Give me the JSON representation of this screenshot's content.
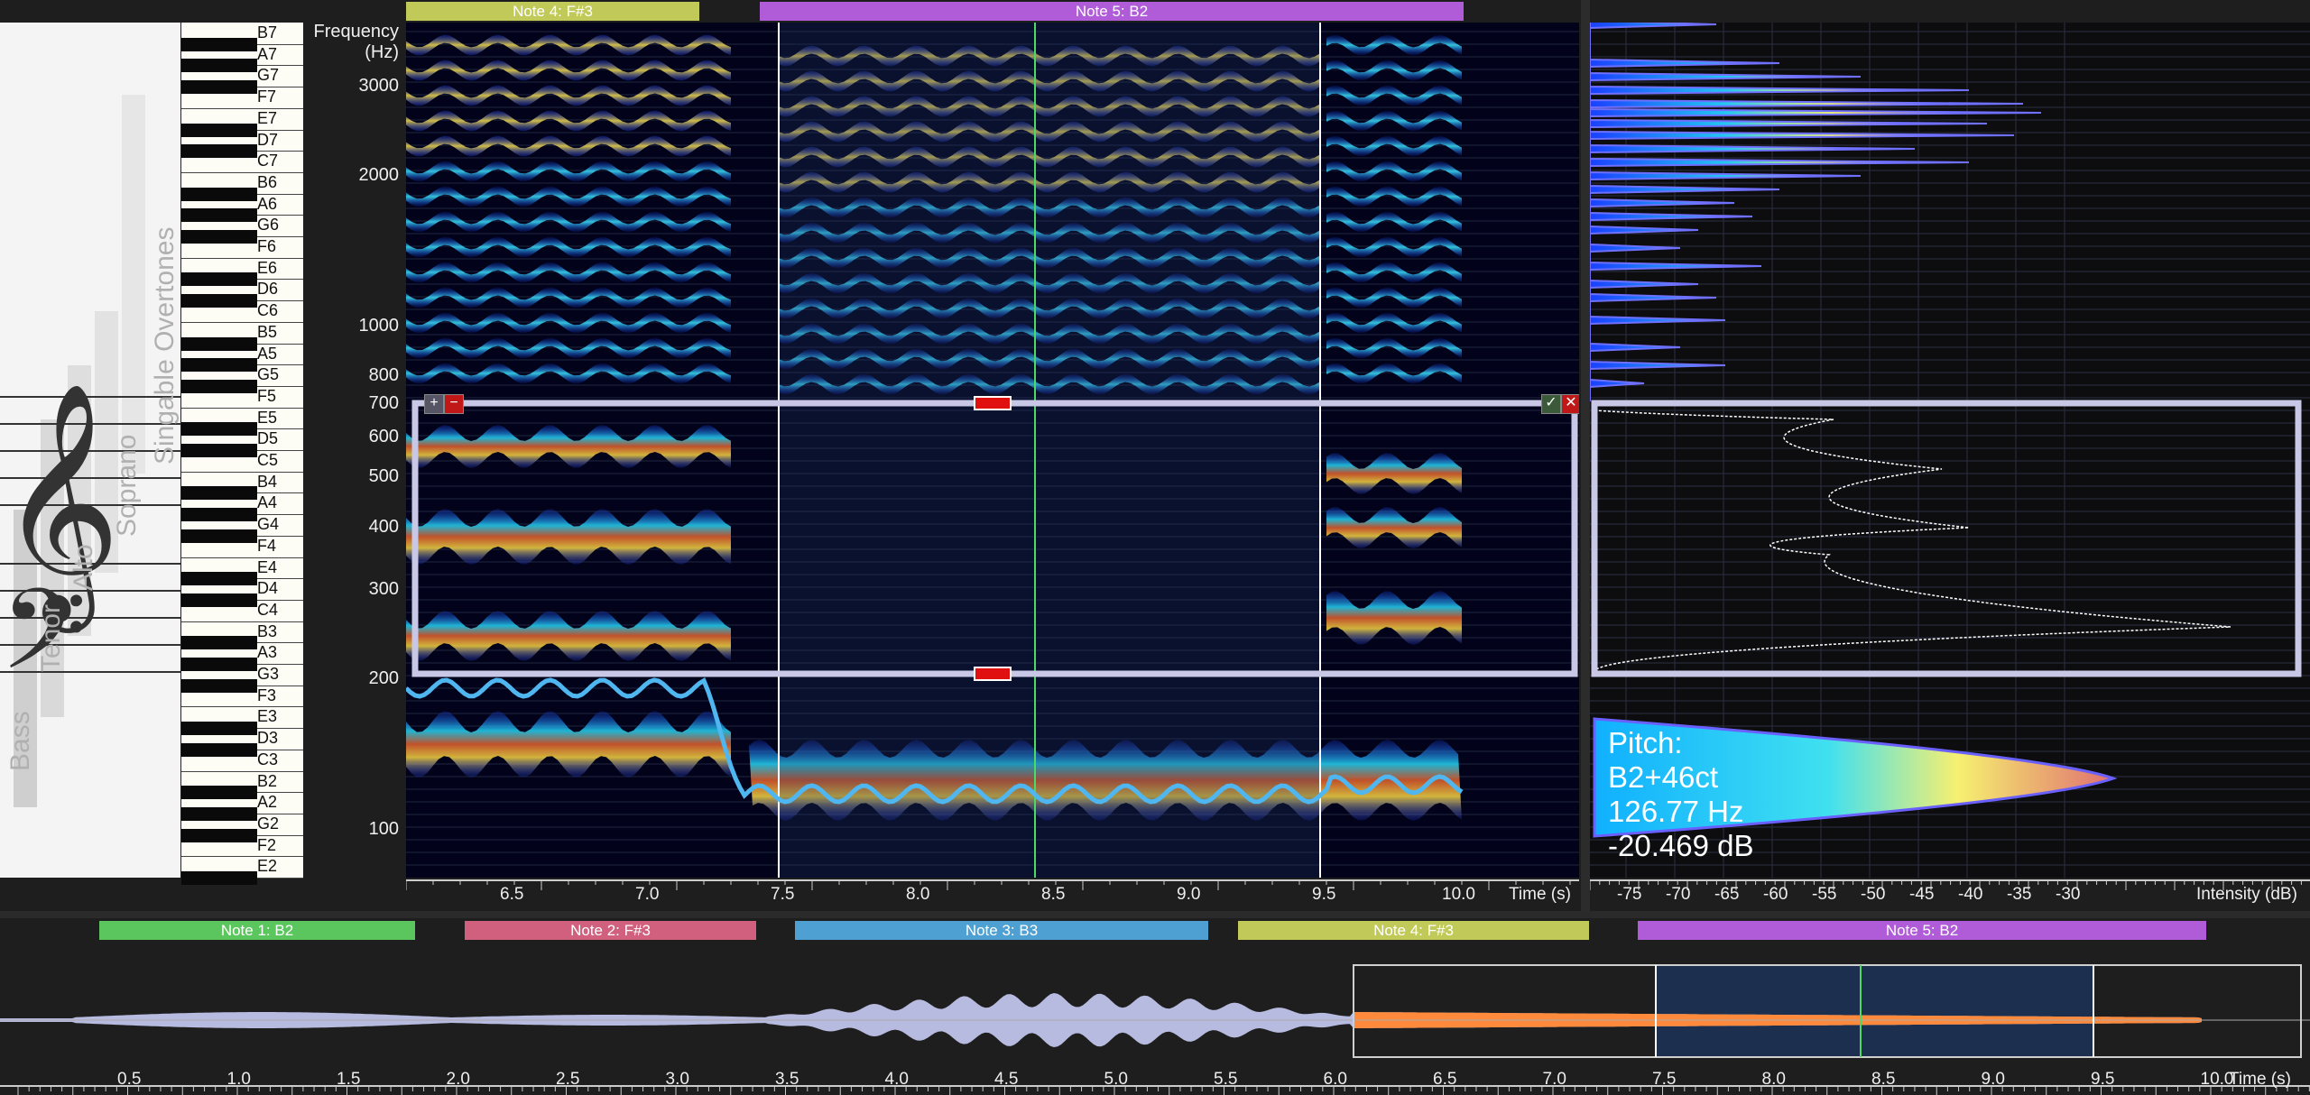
{
  "top_notes": [
    {
      "label": "Note 4: F#3",
      "color": "#c1ca59"
    },
    {
      "label": "Note 5: B2",
      "color": "#b05bd8"
    }
  ],
  "bottom_notes": [
    {
      "label": "Note 1: B2",
      "color": "#5cc65e"
    },
    {
      "label": "Note 2: F#3",
      "color": "#d0607d"
    },
    {
      "label": "Note 3: B3",
      "color": "#4fa0d2"
    },
    {
      "label": "Note 4: F#3",
      "color": "#c1ca59"
    },
    {
      "label": "Note 5: B2",
      "color": "#b05bd8"
    }
  ],
  "piano_notes": [
    "B7",
    "A7",
    "G7",
    "F7",
    "E7",
    "D7",
    "C7",
    "B6",
    "A6",
    "G6",
    "F6",
    "E6",
    "D6",
    "C6",
    "B5",
    "A5",
    "G5",
    "F5",
    "E5",
    "D5",
    "C5",
    "B4",
    "A4",
    "G4",
    "F4",
    "E4",
    "D4",
    "C4",
    "B3",
    "A3",
    "G3",
    "F3",
    "E3",
    "D3",
    "C3",
    "B2",
    "A2",
    "G2",
    "F2",
    "E2"
  ],
  "voice_ranges": [
    "Bass",
    "Tenor",
    "Alto",
    "Soprano",
    "Singable Overtones"
  ],
  "freq_axis": {
    "title": "Frequency",
    "unit": "(Hz)",
    "labels": [
      "3000",
      "2000",
      "1000",
      "800",
      "700",
      "600",
      "500",
      "400",
      "300",
      "200",
      "100"
    ]
  },
  "time_axis_top": {
    "labels": [
      "6.5",
      "7.0",
      "7.5",
      "8.0",
      "8.5",
      "9.0",
      "9.5",
      "10.0"
    ],
    "title": "Time (s)"
  },
  "intensity_axis": {
    "labels": [
      "-75",
      "-70",
      "-65",
      "-60",
      "-55",
      "-50",
      "-45",
      "-40",
      "-35",
      "-30"
    ],
    "title": "Intensity (dB)"
  },
  "pitch_readout": {
    "title": "Pitch:",
    "note": "B2+46ct",
    "hz": "126.77 Hz",
    "db": "-20.469 dB"
  },
  "time_axis_bottom": {
    "labels": [
      "0.5",
      "1.0",
      "1.5",
      "2.0",
      "2.5",
      "3.0",
      "3.5",
      "4.0",
      "4.5",
      "5.0",
      "5.5",
      "6.0",
      "6.5",
      "7.0",
      "7.5",
      "8.0",
      "8.5",
      "9.0",
      "9.5",
      "10.0"
    ],
    "title": "Time (s)"
  },
  "colors": {
    "background": "#1e1e1e",
    "spectrogram_bg": "#02031a",
    "pitch_line": "#4fb6f0",
    "selection_box": "#c8c8e6",
    "cursor_line": "#4cd964",
    "waveform": "#b8bbe0",
    "waveform_highlight": "#ff8a3c"
  },
  "icons": [
    "plus-icon",
    "minus-icon",
    "check-icon",
    "close-icon",
    "treble-clef-icon",
    "bass-clef-icon"
  ]
}
